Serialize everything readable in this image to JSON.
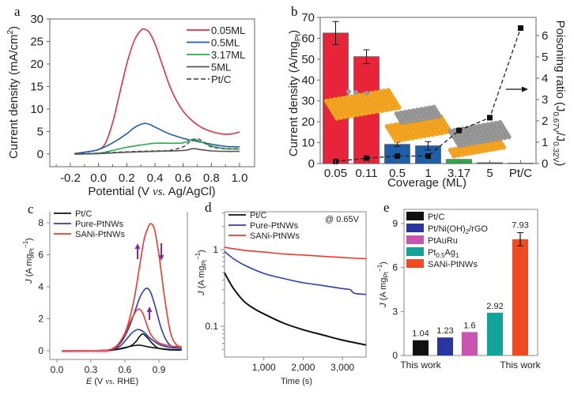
{
  "chart_data": [
    {
      "panel": "a",
      "type": "line",
      "xlabel": "Potential (V vs. Ag/AgCl)",
      "ylabel": "Current density (mA/cm²)",
      "xlim": [
        -0.3,
        1.05
      ],
      "ylim": [
        -2.5,
        30
      ],
      "xticks": [
        "-0.2",
        "0.0",
        "0.2",
        "0.4",
        "0.6",
        "0.8",
        "1.0"
      ],
      "yticks": [
        "0",
        "5",
        "10",
        "15",
        "20",
        "25",
        "30"
      ],
      "legend_position": "top-right",
      "series": [
        {
          "name": "0.05ML",
          "color": "#e8303c",
          "dash": false,
          "x": [
            -0.17,
            -0.1,
            0,
            0.05,
            0.1,
            0.15,
            0.2,
            0.25,
            0.3,
            0.33,
            0.36,
            0.4,
            0.45,
            0.5,
            0.55,
            0.6,
            0.65,
            0.7,
            0.75,
            0.8,
            0.85,
            0.9,
            0.95,
            1.0
          ],
          "y": [
            0.1,
            0.4,
            1.0,
            2.5,
            7.0,
            13.5,
            20,
            25,
            27.5,
            27.7,
            27,
            24.5,
            20,
            15.5,
            12,
            9.5,
            7.8,
            6.5,
            5.6,
            5.0,
            4.6,
            4.4,
            4.5,
            4.9
          ]
        },
        {
          "name": "0.5ML",
          "color": "#1f5fa8",
          "dash": false,
          "x": [
            -0.17,
            -0.1,
            0,
            0.1,
            0.2,
            0.25,
            0.3,
            0.33,
            0.36,
            0.4,
            0.5,
            0.6,
            0.7,
            0.8,
            0.9,
            1.0
          ],
          "y": [
            0.1,
            0.4,
            1.0,
            2.5,
            4.5,
            5.8,
            6.6,
            6.8,
            6.6,
            6.0,
            4.5,
            3.5,
            2.8,
            2.2,
            1.7,
            1.6
          ]
        },
        {
          "name": "3.17ML",
          "color": "#2aaa4a",
          "dash": false,
          "x": [
            -0.17,
            0,
            0.1,
            0.2,
            0.3,
            0.4,
            0.5,
            0.6,
            0.65,
            0.68,
            0.72,
            0.8,
            0.9,
            1.0
          ],
          "y": [
            0,
            0.2,
            0.8,
            1.5,
            2.0,
            2.4,
            2.4,
            2.5,
            3.1,
            3.3,
            2.8,
            1.8,
            1.2,
            1.1
          ]
        },
        {
          "name": "5ML",
          "color": "#555555",
          "dash": false,
          "x": [
            -0.17,
            0,
            0.2,
            0.4,
            0.6,
            0.65,
            0.68,
            0.72,
            0.8,
            0.9,
            1.0
          ],
          "y": [
            0,
            0.1,
            0.4,
            0.6,
            0.8,
            1.1,
            1.2,
            1.0,
            0.7,
            0.6,
            0.6
          ]
        },
        {
          "name": "Pt/C",
          "color": "#555555",
          "dash": true,
          "x": [
            -0.17,
            0,
            0.2,
            0.4,
            0.5,
            0.6,
            0.65,
            0.7,
            0.75,
            0.8,
            0.9,
            1.0
          ],
          "y": [
            0,
            0.2,
            0.5,
            0.7,
            0.8,
            1.6,
            2.8,
            3.4,
            2.6,
            1.6,
            1.2,
            1.2
          ]
        }
      ]
    },
    {
      "panel": "b",
      "type": "bar",
      "xlabel": "Coverage (ML)",
      "ylabel": "Current density (A/mgPt)",
      "y2label": "Poisoning ratio (J0.67V/J0.32V)",
      "categories": [
        "0.05",
        "0.11",
        "0.5",
        "1",
        "3.17",
        "5",
        "Pt/C"
      ],
      "ylim": [
        0,
        70
      ],
      "y2lim": [
        0,
        6.8
      ],
      "yticks": [
        "0",
        "10",
        "20",
        "30",
        "40",
        "50",
        "60",
        "70"
      ],
      "y2ticks": [
        "0",
        "1",
        "2",
        "3",
        "4",
        "5",
        "6"
      ],
      "bars": {
        "values": [
          62.5,
          51.2,
          9.2,
          8.5,
          2.0,
          0.4,
          0.2
        ],
        "errors": [
          5.5,
          3.3,
          1.0,
          2.0,
          0.2,
          0.1,
          0.05
        ],
        "colors": [
          "#e8243a",
          "#e8243a",
          "#1f5fa8",
          "#1f5fa8",
          "#2aaa4a",
          "#555555",
          "#555555"
        ]
      },
      "poisoning_ratio": {
        "values": [
          0.1,
          0.25,
          0.35,
          0.35,
          1.55,
          2.15,
          6.35
        ],
        "marker": "square",
        "color": "#111111",
        "dash": true
      },
      "annotation_arrow": "right-pointing arrow indicates right axis"
    },
    {
      "panel": "c",
      "type": "line",
      "xlabel": "E (V vs. RHE)",
      "ylabel": "J (A mgPt⁻¹)",
      "xlim": [
        -0.05,
        1.15
      ],
      "ylim": [
        -0.4,
        8.8
      ],
      "xticks": [
        "0.0",
        "0.3",
        "0.6",
        "0.9"
      ],
      "yticks": [
        "0",
        "2",
        "4",
        "6",
        "8"
      ],
      "legend_position": "top-left",
      "series": [
        {
          "name": "Pt/C",
          "color": "#111111",
          "forward": {
            "x": [
              0.05,
              0.4,
              0.55,
              0.65,
              0.7,
              0.73,
              0.76,
              0.8,
              0.85,
              0.9,
              1.0,
              1.1
            ],
            "y": [
              0,
              0.02,
              0.1,
              0.3,
              0.6,
              0.9,
              1.05,
              0.8,
              0.4,
              0.15,
              0.05,
              0.05
            ]
          },
          "backward": {
            "x": [
              1.1,
              1.0,
              0.9,
              0.8,
              0.75,
              0.72,
              0.68,
              0.6,
              0.5,
              0.45
            ],
            "y": [
              0.05,
              0.08,
              0.15,
              0.25,
              0.33,
              0.35,
              0.32,
              0.2,
              0.05,
              0.02
            ]
          }
        },
        {
          "name": "Pure-PtNWs",
          "color": "#2b3fb0",
          "forward": {
            "x": [
              0.05,
              0.45,
              0.55,
              0.62,
              0.68,
              0.73,
              0.77,
              0.8,
              0.83,
              0.87,
              0.92,
              0.97,
              1.02,
              1.1
            ],
            "y": [
              0,
              0.05,
              0.4,
              1.2,
              2.3,
              3.3,
              3.8,
              3.9,
              3.6,
              2.7,
              1.4,
              0.6,
              0.25,
              0.15
            ]
          },
          "backward": {
            "x": [
              1.1,
              1.0,
              0.9,
              0.82,
              0.77,
              0.73,
              0.7,
              0.66,
              0.6,
              0.55,
              0.48
            ],
            "y": [
              0.15,
              0.2,
              0.4,
              0.8,
              1.15,
              1.32,
              1.3,
              1.1,
              0.6,
              0.25,
              0.05
            ]
          }
        },
        {
          "name": "SANi-PtNWs",
          "color": "#f0392b",
          "forward": {
            "x": [
              0.05,
              0.45,
              0.55,
              0.62,
              0.68,
              0.73,
              0.77,
              0.81,
              0.83,
              0.86,
              0.9,
              0.95,
              1.0,
              1.05,
              1.1
            ],
            "y": [
              -0.05,
              0.05,
              0.5,
              1.5,
              3.2,
              5.3,
              7.0,
              7.8,
              7.93,
              7.6,
              6.0,
              3.3,
              1.2,
              0.4,
              0.25
            ]
          },
          "backward": {
            "x": [
              1.1,
              1.0,
              0.9,
              0.83,
              0.79,
              0.76,
              0.73,
              0.7,
              0.66,
              0.6,
              0.54,
              0.48
            ],
            "y": [
              0.25,
              0.3,
              0.5,
              1.0,
              1.7,
              2.3,
              2.6,
              2.5,
              2.0,
              1.1,
              0.4,
              0.1
            ]
          }
        }
      ],
      "annotations": [
        "up-arrow",
        "down-arrow",
        "up-arrow"
      ]
    },
    {
      "panel": "d",
      "type": "line",
      "title_annotation": "@ 0.65V",
      "xlabel": "Time (s)",
      "ylabel": "J (A mgPt⁻¹)",
      "yscale": "log",
      "xlim": [
        0,
        3600
      ],
      "ylim": [
        0.04,
        3.1
      ],
      "xticks": [
        "1,000",
        "2,000",
        "3,000"
      ],
      "yticks": [
        "0.1",
        "1"
      ],
      "legend_position": "top-left",
      "series": [
        {
          "name": "Pt/C",
          "color": "#111111",
          "x": [
            0,
            100,
            250,
            500,
            750,
            1000,
            1500,
            2000,
            2500,
            3000,
            3600
          ],
          "y": [
            0.5,
            0.4,
            0.3,
            0.21,
            0.17,
            0.145,
            0.11,
            0.09,
            0.077,
            0.066,
            0.057
          ]
        },
        {
          "name": "Pure-PtNWs",
          "color": "#2b3fb0",
          "x": [
            0,
            200,
            500,
            1000,
            1500,
            2000,
            2500,
            3000,
            3200,
            3300,
            3600
          ],
          "y": [
            0.95,
            0.78,
            0.63,
            0.49,
            0.42,
            0.37,
            0.34,
            0.31,
            0.3,
            0.27,
            0.26
          ]
        },
        {
          "name": "SANi-PtNWs",
          "color": "#f0392b",
          "x": [
            0,
            500,
            1000,
            1500,
            2000,
            2500,
            3000,
            3600
          ],
          "y": [
            1.07,
            0.98,
            0.93,
            0.88,
            0.85,
            0.82,
            0.79,
            0.76
          ]
        }
      ]
    },
    {
      "panel": "e",
      "type": "bar",
      "ylabel": "J (A mgPt⁻¹)",
      "ylim": [
        0,
        10
      ],
      "yticks": [
        "0",
        "3",
        "6",
        "9"
      ],
      "legend_position": "top-left",
      "categories": [
        "Pt/C",
        "Pt/Ni(OH)₂/rGO",
        "PtAuRu",
        "Pt₀.₅Ag₁",
        "SANi-PtNWs"
      ],
      "values": [
        1.04,
        1.23,
        1.6,
        2.92,
        7.93
      ],
      "value_labels": [
        "1.04",
        "1.23",
        "1.6",
        "2.92",
        "7.93"
      ],
      "error_last": 0.45,
      "colors": [
        "#111111",
        "#2b35a0",
        "#c855b0",
        "#14a398",
        "#f04a22"
      ],
      "xlabels": [
        "This work",
        "This work"
      ]
    }
  ],
  "labels": {
    "a": "a",
    "b": "b",
    "c": "c",
    "d": "d",
    "e": "e",
    "a_xlabel_pre": "Potential (V ",
    "a_xlabel_vs": "vs.",
    "a_xlabel_post": " Ag/AgCl)",
    "a_ylabel": "Current density (mA/cm",
    "a_ylabel_sup": "2",
    "a_ylabel_close": ")",
    "b_xlabel": "Coverage (ML)",
    "b_ylabel": "Current density (A/mg",
    "b_ylabel_sub": "Pt",
    "b_ylabel_close": ")",
    "b_y2label": "Poisoning  ratio (J",
    "b_y2_sub1": "0.67V",
    "b_y2_mid": "/J",
    "b_y2_sub2": "0.32V",
    "b_y2_close": ")",
    "c_xlabel_E": "E",
    "c_xlabel_rest": " (V ",
    "c_xlabel_vs": "vs.",
    "c_xlabel_end": " RHE)",
    "j_label": "J",
    "j_unit": " (A mg",
    "j_sub": "Pt",
    "j_sup": "−1",
    "j_close": ")",
    "d_xlabel": "Time (s)",
    "d_annotation": "@ 0.65V",
    "e_leg_pt": "Pt",
    "e_leg_05": "0.5",
    "e_leg_ag": "Ag",
    "e_leg_1": "1",
    "e_leg_niohrgo_a": "Pt/Ni(OH)",
    "e_leg_niohrgo_sub": "2",
    "e_leg_niohrgo_b": "/rGO"
  }
}
